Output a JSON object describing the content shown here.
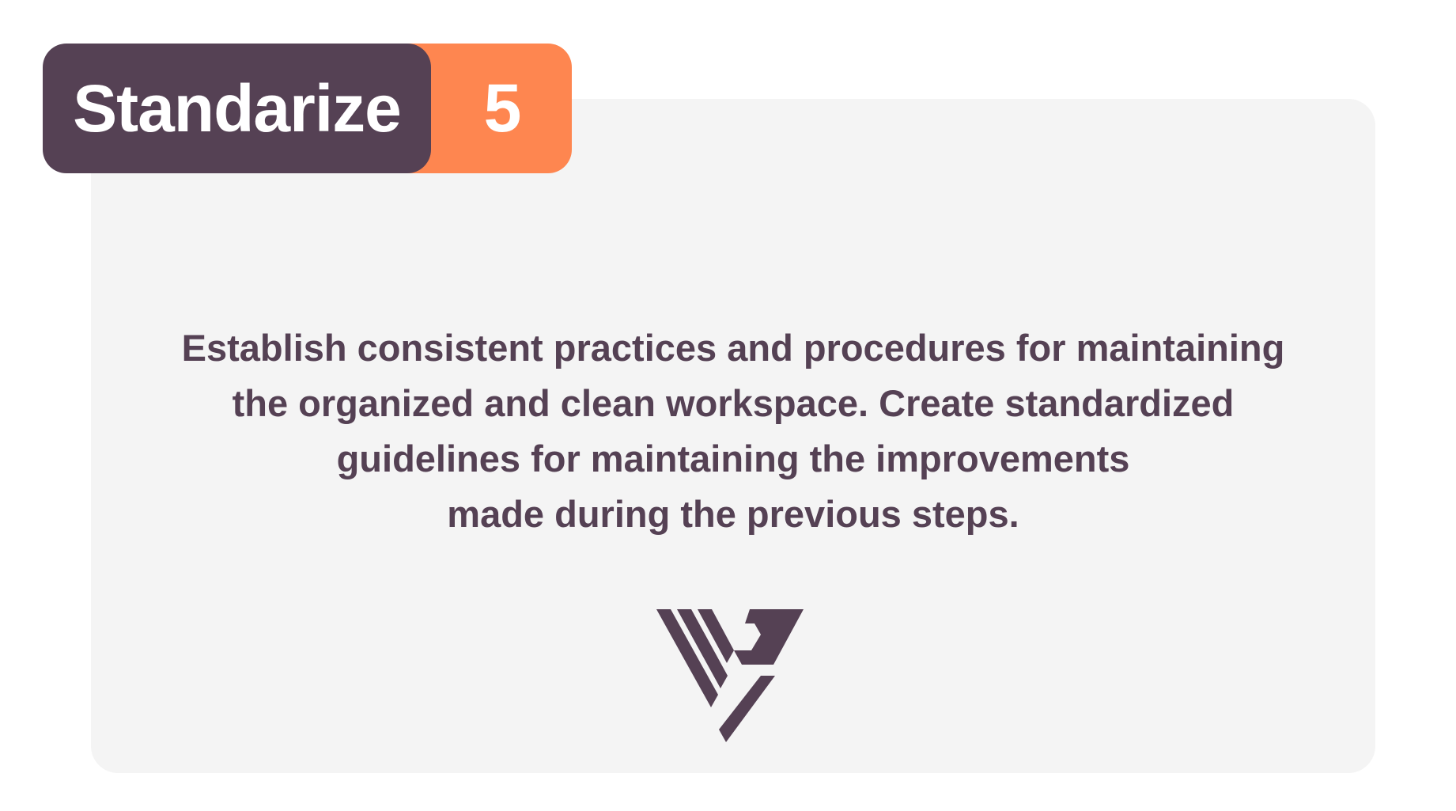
{
  "badge": {
    "title": "Standarize",
    "number": "5"
  },
  "description": {
    "lines": [
      "Establish consistent practices and procedures for maintaining",
      "the organized and clean workspace. Create standardized",
      "guidelines for maintaining the improvements",
      "made during the previous steps."
    ]
  },
  "logo": {
    "icon": "stylized-v-p-monogram-logo",
    "color": "#554154"
  },
  "colors": {
    "title_badge": "#554154",
    "number_badge": "#fe8650",
    "card_background": "#f4f4f4",
    "text": "#554154"
  }
}
